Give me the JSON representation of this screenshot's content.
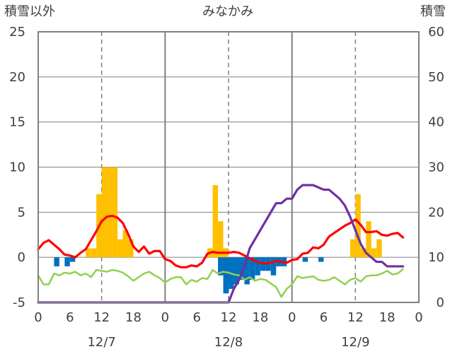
{
  "chart_data": {
    "type": "bar",
    "title": "みなかみ",
    "ylabel_left": "積雪以外",
    "ylabel_right": "積雪",
    "left_axis": {
      "ylim": [
        -5,
        25
      ],
      "ticks": [
        -5,
        0,
        5,
        10,
        15,
        20,
        25
      ]
    },
    "right_axis": {
      "ylim": [
        0,
        60
      ],
      "ticks": [
        0,
        10,
        20,
        30,
        40,
        50,
        60
      ]
    },
    "x_ticks": [
      "0",
      "6",
      "12",
      "18",
      "0",
      "6",
      "12",
      "18",
      "0",
      "6",
      "12",
      "18",
      "0"
    ],
    "date_labels": [
      "12/7",
      "12/8",
      "12/9"
    ],
    "grid": {
      "horizontal": true,
      "day_dividers": "solid",
      "noon_lines": "dashed"
    },
    "series": [
      {
        "kind": "bar",
        "axis": "left",
        "color": "#FFC000",
        "points": [
          [
            9,
            1
          ],
          [
            10,
            1
          ],
          [
            11,
            7
          ],
          [
            12,
            10
          ],
          [
            13,
            10
          ],
          [
            14,
            10
          ],
          [
            15,
            2
          ],
          [
            16,
            3
          ],
          [
            17,
            2
          ],
          [
            32,
            1
          ],
          [
            33,
            8
          ],
          [
            34,
            4
          ],
          [
            35,
            1
          ],
          [
            59,
            2
          ],
          [
            60,
            7
          ],
          [
            61,
            1
          ],
          [
            62,
            4
          ],
          [
            63,
            1
          ],
          [
            64,
            2
          ]
        ]
      },
      {
        "kind": "bar",
        "axis": "left",
        "color": "#0070C0",
        "points": [
          [
            3,
            -1
          ],
          [
            5,
            -1
          ],
          [
            6,
            -0.5
          ],
          [
            34,
            -2
          ],
          [
            35,
            -4
          ],
          [
            36,
            -3.5
          ],
          [
            37,
            -3
          ],
          [
            38,
            -2.5
          ],
          [
            39,
            -3
          ],
          [
            40,
            -2.5
          ],
          [
            41,
            -2
          ],
          [
            42,
            -1.5
          ],
          [
            43,
            -1.5
          ],
          [
            44,
            -2
          ],
          [
            45,
            -1
          ],
          [
            46,
            -1
          ],
          [
            50,
            -0.5
          ],
          [
            53,
            -0.5
          ]
        ]
      },
      {
        "kind": "line",
        "axis": "left",
        "color": "#FF0000",
        "points": [
          [
            0,
            0.9
          ],
          [
            1,
            1.6
          ],
          [
            2,
            1.9
          ],
          [
            3,
            1.4
          ],
          [
            4,
            0.9
          ],
          [
            5,
            0.3
          ],
          [
            6,
            0.2
          ],
          [
            7,
            0
          ],
          [
            8,
            0.5
          ],
          [
            9,
            0.9
          ],
          [
            10,
            1.9
          ],
          [
            11,
            2.9
          ],
          [
            12,
            4.0
          ],
          [
            13,
            4.5
          ],
          [
            14,
            4.6
          ],
          [
            15,
            4.4
          ],
          [
            16,
            3.8
          ],
          [
            17,
            2.6
          ],
          [
            18,
            1.2
          ],
          [
            19,
            0.6
          ],
          [
            20,
            1.2
          ],
          [
            21,
            0.4
          ],
          [
            22,
            0.7
          ],
          [
            23,
            0.7
          ],
          [
            24,
            -0.2
          ],
          [
            25,
            -0.4
          ],
          [
            26,
            -0.9
          ],
          [
            27,
            -1.1
          ],
          [
            28,
            -1.1
          ],
          [
            29,
            -0.9
          ],
          [
            30,
            -1.0
          ],
          [
            31,
            -0.6
          ],
          [
            32,
            0.4
          ],
          [
            33,
            0.6
          ],
          [
            34,
            0.5
          ],
          [
            35,
            0.5
          ],
          [
            36,
            0.5
          ],
          [
            37,
            0.6
          ],
          [
            38,
            0.5
          ],
          [
            39,
            0.2
          ],
          [
            40,
            -0.1
          ],
          [
            41,
            -0.4
          ],
          [
            42,
            -0.6
          ],
          [
            43,
            -0.7
          ],
          [
            44,
            -0.6
          ],
          [
            45,
            -0.4
          ],
          [
            46,
            -0.5
          ],
          [
            47,
            -0.6
          ],
          [
            48,
            -0.3
          ],
          [
            49,
            -0.2
          ],
          [
            50,
            0.4
          ],
          [
            51,
            0.5
          ],
          [
            52,
            1.1
          ],
          [
            53,
            1.0
          ],
          [
            54,
            1.4
          ],
          [
            55,
            2.3
          ],
          [
            56,
            2.7
          ],
          [
            57,
            3.1
          ],
          [
            58,
            3.5
          ],
          [
            59,
            3.8
          ],
          [
            60,
            4.2
          ],
          [
            61,
            3.6
          ],
          [
            62,
            2.8
          ],
          [
            63,
            2.8
          ],
          [
            64,
            2.9
          ],
          [
            65,
            2.5
          ],
          [
            66,
            2.4
          ],
          [
            67,
            2.6
          ],
          [
            68,
            2.7
          ],
          [
            69,
            2.2
          ]
        ]
      },
      {
        "kind": "line",
        "axis": "left",
        "color": "#92D050",
        "points": [
          [
            0,
            -2.0
          ],
          [
            1,
            -3.0
          ],
          [
            2,
            -3.0
          ],
          [
            3,
            -1.8
          ],
          [
            4,
            -2.0
          ],
          [
            5,
            -1.7
          ],
          [
            6,
            -1.8
          ],
          [
            7,
            -1.6
          ],
          [
            8,
            -2.0
          ],
          [
            9,
            -1.8
          ],
          [
            10,
            -2.2
          ],
          [
            11,
            -1.4
          ],
          [
            12,
            -1.5
          ],
          [
            13,
            -1.6
          ],
          [
            14,
            -1.4
          ],
          [
            15,
            -1.5
          ],
          [
            16,
            -1.7
          ],
          [
            17,
            -2.1
          ],
          [
            18,
            -2.6
          ],
          [
            19,
            -2.2
          ],
          [
            20,
            -1.8
          ],
          [
            21,
            -1.6
          ],
          [
            22,
            -2.0
          ],
          [
            23,
            -2.3
          ],
          [
            24,
            -2.8
          ],
          [
            25,
            -2.4
          ],
          [
            26,
            -2.2
          ],
          [
            27,
            -2.2
          ],
          [
            28,
            -3.0
          ],
          [
            29,
            -2.5
          ],
          [
            30,
            -2.7
          ],
          [
            31,
            -2.3
          ],
          [
            32,
            -2.4
          ],
          [
            33,
            -1.4
          ],
          [
            34,
            -1.8
          ],
          [
            35,
            -1.6
          ],
          [
            36,
            -1.7
          ],
          [
            37,
            -1.9
          ],
          [
            38,
            -2.0
          ],
          [
            39,
            -2.5
          ],
          [
            40,
            -2.2
          ],
          [
            41,
            -2.6
          ],
          [
            42,
            -2.4
          ],
          [
            43,
            -2.5
          ],
          [
            44,
            -2.9
          ],
          [
            45,
            -3.3
          ],
          [
            46,
            -4.4
          ],
          [
            47,
            -3.5
          ],
          [
            48,
            -3.0
          ],
          [
            49,
            -2.1
          ],
          [
            50,
            -2.3
          ],
          [
            51,
            -2.2
          ],
          [
            52,
            -2.1
          ],
          [
            53,
            -2.5
          ],
          [
            54,
            -2.6
          ],
          [
            55,
            -2.5
          ],
          [
            56,
            -2.2
          ],
          [
            57,
            -2.6
          ],
          [
            58,
            -3.0
          ],
          [
            59,
            -2.5
          ],
          [
            60,
            -2.3
          ],
          [
            61,
            -2.7
          ],
          [
            62,
            -2.1
          ],
          [
            63,
            -2.0
          ],
          [
            64,
            -2.0
          ],
          [
            65,
            -1.8
          ],
          [
            66,
            -1.5
          ],
          [
            67,
            -1.9
          ],
          [
            68,
            -1.8
          ],
          [
            69,
            -1.3
          ]
        ]
      },
      {
        "kind": "line",
        "axis": "right",
        "color": "#7030A0",
        "points": [
          [
            0,
            0
          ],
          [
            34,
            0
          ],
          [
            34.6,
            0
          ],
          [
            35,
            -2
          ],
          [
            36,
            0
          ],
          [
            37,
            3
          ],
          [
            38,
            5
          ],
          [
            39,
            8
          ],
          [
            40,
            12
          ],
          [
            41,
            14
          ],
          [
            42,
            16
          ],
          [
            43,
            18
          ],
          [
            44,
            20
          ],
          [
            45,
            22
          ],
          [
            46,
            22
          ],
          [
            47,
            23
          ],
          [
            48,
            23
          ],
          [
            49,
            25
          ],
          [
            50,
            26
          ],
          [
            51,
            26
          ],
          [
            52,
            26
          ],
          [
            53,
            25.5
          ],
          [
            54,
            25
          ],
          [
            55,
            25
          ],
          [
            56,
            24
          ],
          [
            57,
            23
          ],
          [
            58,
            21.5
          ],
          [
            59,
            19
          ],
          [
            60,
            16
          ],
          [
            61,
            13
          ],
          [
            62,
            11
          ],
          [
            63,
            10
          ],
          [
            64,
            9
          ],
          [
            65,
            9
          ],
          [
            66,
            8
          ],
          [
            67,
            8
          ],
          [
            68,
            8
          ],
          [
            69,
            8
          ]
        ]
      }
    ]
  }
}
